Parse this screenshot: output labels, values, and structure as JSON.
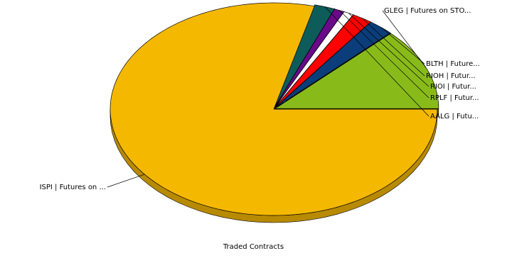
{
  "chart_data": {
    "type": "pie",
    "style": "3d-exploded",
    "xlabel": "Traded Contracts",
    "legend": "none",
    "slices": [
      {
        "label": "GLEG | Futures on STO...",
        "value": 12.5,
        "color": "#88BB1A",
        "dark": "#54730F"
      },
      {
        "label": "BLTH | Future...",
        "value": 2.5,
        "color": "#0A3D7A",
        "dark": "#05213F"
      },
      {
        "label": "RIOH | Futur...",
        "value": 2.0,
        "color": "#FF0000",
        "dark": "#990000"
      },
      {
        "label": "RIOI | Futur...",
        "value": 1.0,
        "color": "#FFFFFF",
        "dark": "#B0B0B0"
      },
      {
        "label": "RPLF | Futur...",
        "value": 1.0,
        "color": "#6A0A8A",
        "dark": "#3C0550"
      },
      {
        "label": "AALG | Futu...",
        "value": 2.0,
        "color": "#0E5C5A",
        "dark": "#06302F"
      },
      {
        "label": "ISPI | Futures on ...",
        "value": 79.0,
        "color": "#F5B800",
        "dark": "#B88A00"
      }
    ]
  }
}
